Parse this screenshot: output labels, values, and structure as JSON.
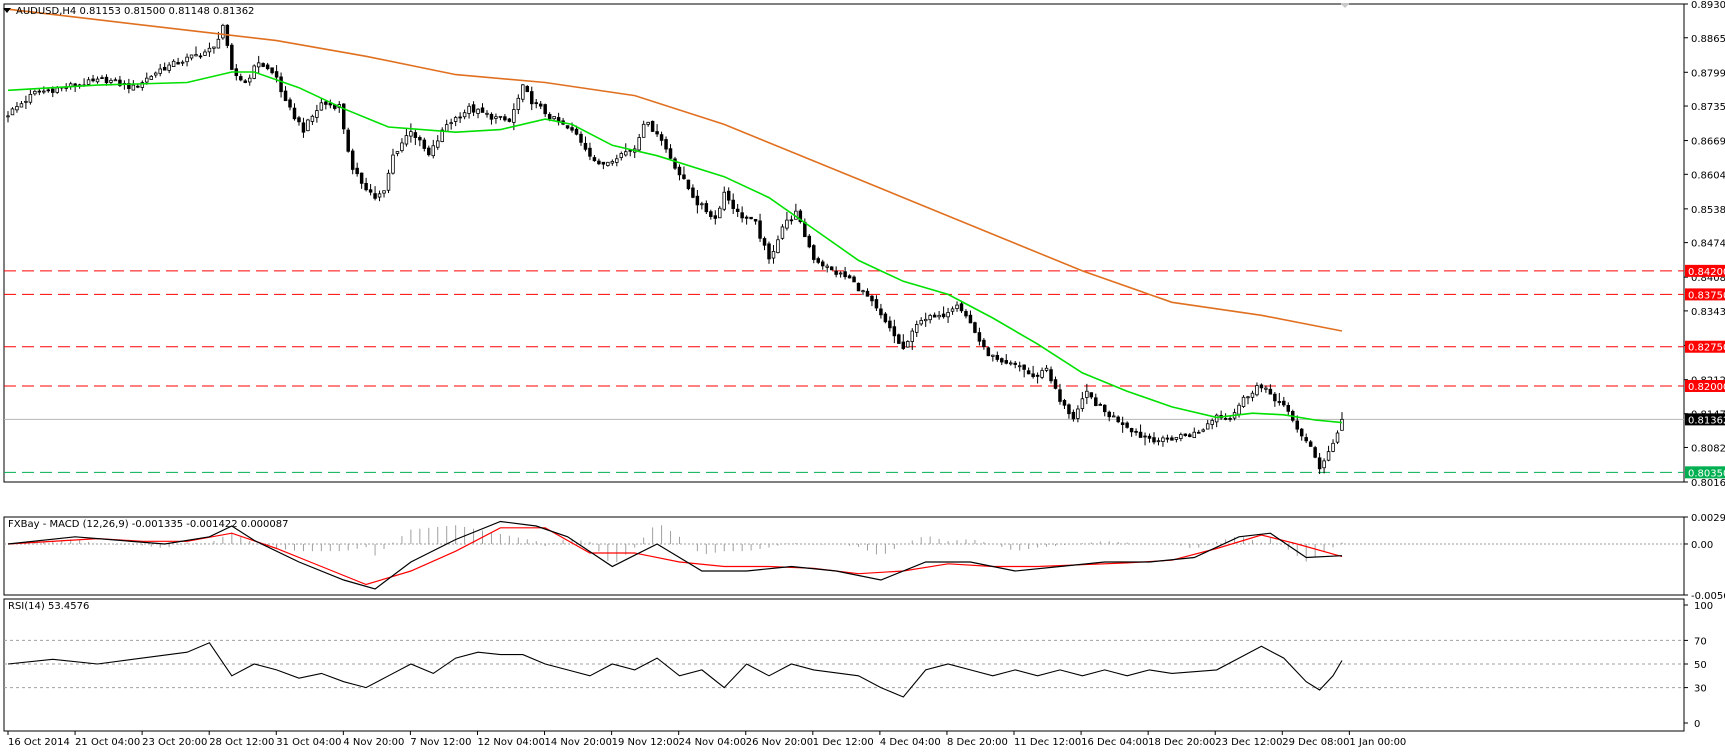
{
  "main_header": "AUDUSD,H4  0.81153 0.81500 0.81148 0.81362",
  "macd_header": "FXBay - MACD (12,26,9) -0.001335 -0.001422 0.000087",
  "rsi_header": "RSI(14) 53.4576",
  "chart_data": [
    {
      "type": "candlestick",
      "symbol": "AUDUSD",
      "timeframe": "H4",
      "last_bar": {
        "open": 0.81153,
        "high": 0.815,
        "low": 0.81148,
        "close": 0.81362
      },
      "ylim": [
        0.80165,
        0.893
      ],
      "y_ticks": [
        "0.89300",
        "0.88655",
        "0.87995",
        "0.87350",
        "0.86690",
        "0.86045",
        "0.85385",
        "0.84740",
        "0.84080",
        "0.83435",
        "0.82775",
        "0.82120",
        "0.81470",
        "0.80825",
        "0.80165"
      ],
      "x_tick_labels": [
        "16 Oct 2014",
        "21 Oct 04:00",
        "23 Oct 20:00",
        "28 Oct 12:00",
        "31 Oct 04:00",
        "4 Nov 20:00",
        "7 Nov 12:00",
        "12 Nov 04:00",
        "14 Nov 20:00",
        "19 Nov 12:00",
        "24 Nov 04:00",
        "26 Nov 20:00",
        "1 Dec 12:00",
        "4 Dec 04:00",
        "8 Dec 20:00",
        "11 Dec 12:00",
        "16 Dec 04:00",
        "18 Dec 20:00",
        "23 Dec 12:00",
        "29 Dec 08:00",
        "1 Jan 00:00"
      ],
      "close_path": [
        [
          0,
          0.872
        ],
        [
          6,
          0.876
        ],
        [
          15,
          0.8775
        ],
        [
          22,
          0.8785
        ],
        [
          28,
          0.877
        ],
        [
          34,
          0.8805
        ],
        [
          40,
          0.8825
        ],
        [
          46,
          0.8845
        ],
        [
          48,
          0.889
        ],
        [
          50,
          0.88
        ],
        [
          53,
          0.878
        ],
        [
          56,
          0.882
        ],
        [
          60,
          0.879
        ],
        [
          62,
          0.874
        ],
        [
          66,
          0.869
        ],
        [
          70,
          0.874
        ],
        [
          74,
          0.8735
        ],
        [
          77,
          0.861
        ],
        [
          82,
          0.856
        ],
        [
          84,
          0.857
        ],
        [
          86,
          0.864
        ],
        [
          90,
          0.869
        ],
        [
          94,
          0.864
        ],
        [
          98,
          0.87
        ],
        [
          103,
          0.873
        ],
        [
          108,
          0.8715
        ],
        [
          112,
          0.8705
        ],
        [
          115,
          0.877
        ],
        [
          117,
          0.8745
        ],
        [
          121,
          0.8715
        ],
        [
          127,
          0.868
        ],
        [
          132,
          0.862
        ],
        [
          136,
          0.864
        ],
        [
          140,
          0.8655
        ],
        [
          142,
          0.8705
        ],
        [
          145,
          0.8685
        ],
        [
          150,
          0.8605
        ],
        [
          154,
          0.855
        ],
        [
          158,
          0.852
        ],
        [
          160,
          0.857
        ],
        [
          163,
          0.853
        ],
        [
          167,
          0.851
        ],
        [
          170,
          0.844
        ],
        [
          173,
          0.8505
        ],
        [
          176,
          0.853
        ],
        [
          180,
          0.8445
        ],
        [
          184,
          0.842
        ],
        [
          188,
          0.8405
        ],
        [
          192,
          0.837
        ],
        [
          196,
          0.832
        ],
        [
          200,
          0.827
        ],
        [
          204,
          0.833
        ],
        [
          208,
          0.833
        ],
        [
          212,
          0.836
        ],
        [
          215,
          0.832
        ],
        [
          218,
          0.827
        ],
        [
          222,
          0.824
        ],
        [
          226,
          0.824
        ],
        [
          229,
          0.8215
        ],
        [
          232,
          0.8235
        ],
        [
          235,
          0.817
        ],
        [
          238,
          0.814
        ],
        [
          241,
          0.8185
        ],
        [
          245,
          0.815
        ],
        [
          249,
          0.813
        ],
        [
          253,
          0.8105
        ],
        [
          258,
          0.8095
        ],
        [
          262,
          0.8105
        ],
        [
          266,
          0.811
        ],
        [
          270,
          0.8145
        ],
        [
          273,
          0.814
        ],
        [
          276,
          0.8175
        ],
        [
          279,
          0.82
        ],
        [
          282,
          0.8185
        ],
        [
          285,
          0.816
        ],
        [
          288,
          0.812
        ],
        [
          291,
          0.808
        ],
        [
          293,
          0.8045
        ],
        [
          296,
          0.809
        ],
        [
          298,
          0.8136
        ]
      ],
      "moving_averages": [
        {
          "color": "#00e000",
          "path": [
            [
              0,
              0.8765
            ],
            [
              20,
              0.8775
            ],
            [
              40,
              0.878
            ],
            [
              50,
              0.88
            ],
            [
              55,
              0.88
            ],
            [
              65,
              0.877
            ],
            [
              75,
              0.873
            ],
            [
              85,
              0.8695
            ],
            [
              100,
              0.8685
            ],
            [
              110,
              0.869
            ],
            [
              120,
              0.871
            ],
            [
              126,
              0.87
            ],
            [
              135,
              0.866
            ],
            [
              145,
              0.864
            ],
            [
              160,
              0.86
            ],
            [
              170,
              0.856
            ],
            [
              180,
              0.85
            ],
            [
              190,
              0.844
            ],
            [
              200,
              0.84
            ],
            [
              210,
              0.8375
            ],
            [
              220,
              0.833
            ],
            [
              230,
              0.828
            ],
            [
              240,
              0.8225
            ],
            [
              250,
              0.819
            ],
            [
              260,
              0.816
            ],
            [
              270,
              0.814
            ],
            [
              278,
              0.8148
            ],
            [
              285,
              0.8145
            ],
            [
              292,
              0.8135
            ],
            [
              298,
              0.813
            ]
          ]
        },
        {
          "color": "#e07020",
          "path": [
            [
              0,
              0.892
            ],
            [
              20,
              0.89
            ],
            [
              40,
              0.888
            ],
            [
              60,
              0.886
            ],
            [
              80,
              0.883
            ],
            [
              100,
              0.8795
            ],
            [
              120,
              0.878
            ],
            [
              140,
              0.8755
            ],
            [
              160,
              0.87
            ],
            [
              180,
              0.863
            ],
            [
              200,
              0.856
            ],
            [
              220,
              0.849
            ],
            [
              240,
              0.842
            ],
            [
              260,
              0.836
            ],
            [
              280,
              0.8335
            ],
            [
              298,
              0.8305
            ]
          ]
        }
      ],
      "horizontal_levels": [
        {
          "value": 0.842,
          "label": "0.84200",
          "color": "#ff0000"
        },
        {
          "value": 0.8375,
          "label": "0.83750",
          "color": "#ff0000"
        },
        {
          "value": 0.8275,
          "label": "0.82750",
          "color": "#ff0000"
        },
        {
          "value": 0.82,
          "label": "0.82000",
          "color": "#ff0000"
        },
        {
          "value": 0.8035,
          "label": "0.80350",
          "color": "#00b050"
        }
      ],
      "current_price": {
        "value": 0.81362,
        "label": "0.81362"
      }
    },
    {
      "type": "line",
      "name": "MACD",
      "ylim": [
        -0.005666,
        0.002996
      ],
      "y_ticks": [
        "0.002996",
        "0.00",
        "-0.005666"
      ],
      "macd_path": [
        [
          0,
          0.0
        ],
        [
          15,
          0.0008
        ],
        [
          25,
          0.0004
        ],
        [
          35,
          0.0
        ],
        [
          45,
          0.0008
        ],
        [
          50,
          0.002
        ],
        [
          55,
          0.0004
        ],
        [
          65,
          -0.002
        ],
        [
          75,
          -0.004
        ],
        [
          82,
          -0.005
        ],
        [
          90,
          -0.002
        ],
        [
          100,
          0.0005
        ],
        [
          110,
          0.0025
        ],
        [
          118,
          0.002
        ],
        [
          125,
          0.0008
        ],
        [
          135,
          -0.0025
        ],
        [
          145,
          0.0
        ],
        [
          155,
          -0.003
        ],
        [
          165,
          -0.003
        ],
        [
          175,
          -0.0025
        ],
        [
          185,
          -0.003
        ],
        [
          195,
          -0.004
        ],
        [
          205,
          -0.002
        ],
        [
          215,
          -0.002
        ],
        [
          225,
          -0.003
        ],
        [
          235,
          -0.0025
        ],
        [
          245,
          -0.002
        ],
        [
          255,
          -0.002
        ],
        [
          265,
          -0.0015
        ],
        [
          275,
          0.0008
        ],
        [
          282,
          0.0012
        ],
        [
          290,
          -0.0015
        ],
        [
          298,
          -0.0013
        ]
      ],
      "signal_path": [
        [
          0,
          0.0
        ],
        [
          20,
          0.0006
        ],
        [
          30,
          0.0003
        ],
        [
          40,
          0.0003
        ],
        [
          50,
          0.0012
        ],
        [
          60,
          -0.0005
        ],
        [
          70,
          -0.0025
        ],
        [
          80,
          -0.0045
        ],
        [
          90,
          -0.003
        ],
        [
          100,
          -0.0008
        ],
        [
          110,
          0.0018
        ],
        [
          120,
          0.0018
        ],
        [
          130,
          -0.001
        ],
        [
          140,
          -0.001
        ],
        [
          150,
          -0.002
        ],
        [
          160,
          -0.0025
        ],
        [
          170,
          -0.0025
        ],
        [
          180,
          -0.0027
        ],
        [
          190,
          -0.0033
        ],
        [
          200,
          -0.003
        ],
        [
          210,
          -0.0022
        ],
        [
          220,
          -0.0025
        ],
        [
          230,
          -0.0025
        ],
        [
          240,
          -0.0023
        ],
        [
          250,
          -0.0021
        ],
        [
          260,
          -0.0018
        ],
        [
          270,
          -0.0005
        ],
        [
          280,
          0.001
        ],
        [
          288,
          0.0
        ],
        [
          298,
          -0.0014
        ]
      ]
    },
    {
      "type": "line",
      "name": "RSI(14)",
      "ylim": [
        0,
        100
      ],
      "y_ticks": [
        0,
        30,
        50,
        70,
        100
      ],
      "path": [
        [
          0,
          50
        ],
        [
          10,
          54
        ],
        [
          20,
          50
        ],
        [
          30,
          55
        ],
        [
          40,
          60
        ],
        [
          45,
          68
        ],
        [
          50,
          40
        ],
        [
          55,
          50
        ],
        [
          60,
          45
        ],
        [
          65,
          38
        ],
        [
          70,
          42
        ],
        [
          75,
          35
        ],
        [
          80,
          30
        ],
        [
          85,
          40
        ],
        [
          90,
          50
        ],
        [
          95,
          42
        ],
        [
          100,
          55
        ],
        [
          105,
          60
        ],
        [
          110,
          58
        ],
        [
          115,
          58
        ],
        [
          120,
          50
        ],
        [
          125,
          45
        ],
        [
          130,
          40
        ],
        [
          135,
          50
        ],
        [
          140,
          45
        ],
        [
          145,
          55
        ],
        [
          150,
          40
        ],
        [
          155,
          45
        ],
        [
          160,
          30
        ],
        [
          165,
          50
        ],
        [
          170,
          40
        ],
        [
          175,
          50
        ],
        [
          180,
          45
        ],
        [
          190,
          40
        ],
        [
          195,
          30
        ],
        [
          200,
          22
        ],
        [
          205,
          45
        ],
        [
          210,
          50
        ],
        [
          215,
          45
        ],
        [
          220,
          40
        ],
        [
          225,
          45
        ],
        [
          230,
          40
        ],
        [
          235,
          45
        ],
        [
          240,
          40
        ],
        [
          245,
          45
        ],
        [
          250,
          40
        ],
        [
          255,
          45
        ],
        [
          260,
          42
        ],
        [
          270,
          45
        ],
        [
          275,
          55
        ],
        [
          280,
          65
        ],
        [
          285,
          55
        ],
        [
          290,
          35
        ],
        [
          293,
          28
        ],
        [
          296,
          40
        ],
        [
          298,
          53
        ]
      ]
    }
  ]
}
